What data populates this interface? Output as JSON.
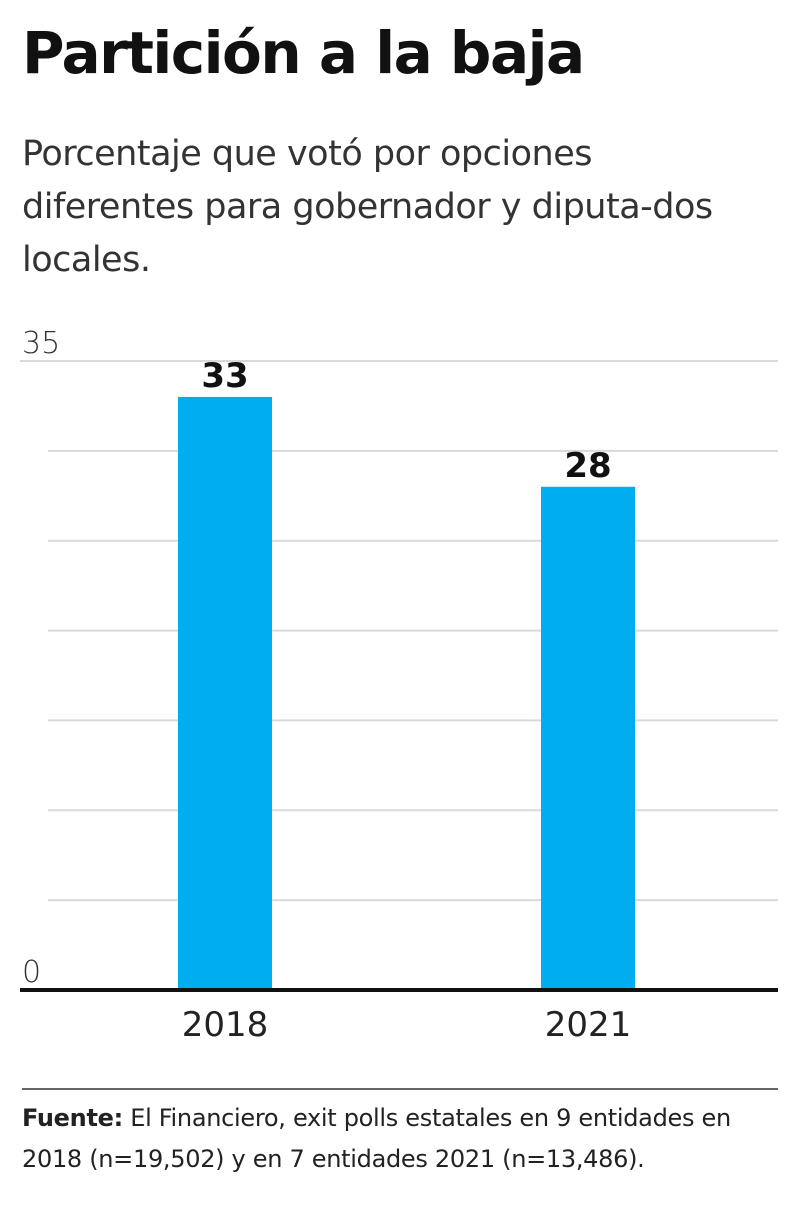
{
  "title": "Partición a la baja",
  "subtitle": "Porcentaje que votó por opciones diferentes para gobernador y diputa-dos locales.",
  "chart_data": {
    "type": "bar",
    "categories": [
      "2018",
      "2021"
    ],
    "values": [
      33,
      28
    ],
    "data_labels": [
      "33",
      "28"
    ],
    "ylim": [
      0,
      35
    ],
    "yticks": [
      0,
      35
    ],
    "ytick_labels": [
      "0",
      "35"
    ],
    "gridlines": [
      0,
      5,
      10,
      15,
      20,
      25,
      30,
      35
    ],
    "grid": true,
    "bar_color": "#00AEEF"
  },
  "source": {
    "label": "Fuente:",
    "text": " El Financiero, exit polls estatales en 9 entidades en 2018 (n=19,502) y en 7 entidades 2021 (n=13,486)."
  }
}
